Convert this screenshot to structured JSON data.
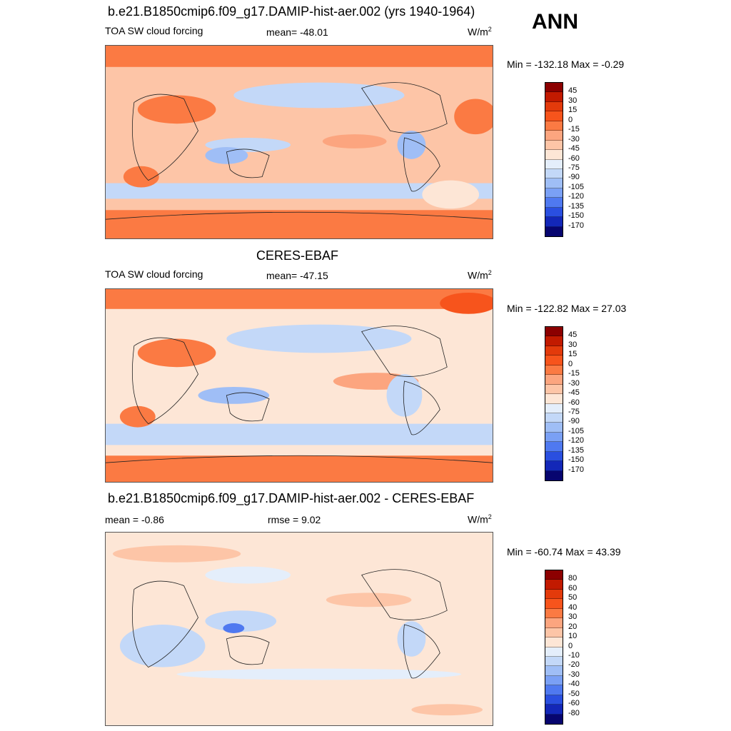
{
  "header": {
    "season": "ANN"
  },
  "panels": [
    {
      "title": "b.e21.B1850cmip6.f09_g17.DAMIP-hist-aer.002 (yrs 1940-1964)",
      "left_label": "TOA SW cloud forcing",
      "center_label": "mean= -48.01",
      "units": "W/m",
      "units_sup": "2",
      "minmax": "Min = -132.18 Max =  -0.29",
      "colorbar": {
        "ticks": [
          "45",
          "30",
          "15",
          "0",
          "-15",
          "-30",
          "-45",
          "-60",
          "-75",
          "-90",
          "-105",
          "-120",
          "-135",
          "-150",
          "-170"
        ],
        "colors": [
          "#8c0000",
          "#c21a00",
          "#e33a0b",
          "#f7541c",
          "#fb7a43",
          "#fca57f",
          "#fdc5a7",
          "#fde6d6",
          "#e4eefb",
          "#c3d8f8",
          "#9fbef6",
          "#7aa0f5",
          "#4f79f0",
          "#2a4fe0",
          "#1327b8",
          "#07056f"
        ]
      }
    },
    {
      "title": "CERES-EBAF",
      "left_label": "TOA SW cloud forcing",
      "center_label": "mean= -47.15",
      "units": "W/m",
      "units_sup": "2",
      "minmax": "Min = -122.82 Max =  27.03",
      "colorbar": {
        "ticks": [
          "45",
          "30",
          "15",
          "0",
          "-15",
          "-30",
          "-45",
          "-60",
          "-75",
          "-90",
          "-105",
          "-120",
          "-135",
          "-150",
          "-170"
        ],
        "colors": [
          "#8c0000",
          "#c21a00",
          "#e33a0b",
          "#f7541c",
          "#fb7a43",
          "#fca57f",
          "#fdc5a7",
          "#fde6d6",
          "#e4eefb",
          "#c3d8f8",
          "#9fbef6",
          "#7aa0f5",
          "#4f79f0",
          "#2a4fe0",
          "#1327b8",
          "#07056f"
        ]
      }
    },
    {
      "title": "b.e21.B1850cmip6.f09_g17.DAMIP-hist-aer.002 - CERES-EBAF",
      "left_label": "mean =  -0.86",
      "center_label": "rmse =   9.02",
      "units": "W/m",
      "units_sup": "2",
      "minmax": "Min = -60.74 Max =  43.39",
      "colorbar": {
        "ticks": [
          "80",
          "60",
          "50",
          "40",
          "30",
          "20",
          "10",
          "0",
          "-10",
          "-20",
          "-30",
          "-40",
          "-50",
          "-60",
          "-80"
        ],
        "colors": [
          "#8c0000",
          "#c21a00",
          "#e33a0b",
          "#f7541c",
          "#fb7a43",
          "#fca57f",
          "#fdc5a7",
          "#fde6d6",
          "#e4eefb",
          "#c3d8f8",
          "#9fbef6",
          "#7aa0f5",
          "#4f79f0",
          "#2a4fe0",
          "#1327b8",
          "#07056f"
        ]
      }
    }
  ]
}
